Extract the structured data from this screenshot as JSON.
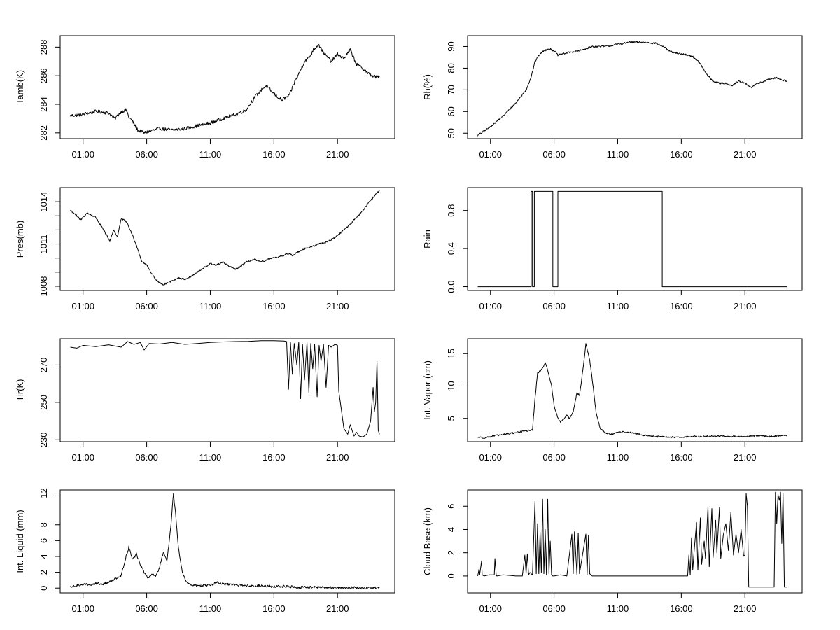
{
  "chart_data": [
    {
      "type": "line",
      "ylabel": "Tamb(K)",
      "x_ticks": [
        "01:00",
        "06:00",
        "11:00",
        "16:00",
        "21:00"
      ],
      "x_range_hours": [
        -0.8,
        25.5
      ],
      "ylim": [
        281.6,
        288.8
      ],
      "y_ticks": [
        {
          "v": 282,
          "label": "282"
        },
        {
          "v": 284,
          "label": "284"
        },
        {
          "v": 286,
          "label": "286"
        },
        {
          "v": 288,
          "label": "288"
        }
      ],
      "step": false,
      "noise": 0.12,
      "x": [
        0.0,
        1.0,
        2.0,
        3.0,
        3.5,
        4.0,
        4.4,
        4.6,
        4.9,
        5.3,
        5.8,
        6.2,
        7.0,
        8.0,
        9.0,
        10.0,
        11.0,
        12.0,
        13.0,
        13.8,
        14.5,
        15.0,
        15.4,
        15.9,
        16.6,
        17.2,
        17.6,
        18.0,
        18.4,
        18.8,
        19.1,
        19.5,
        20.0,
        20.5,
        21.0,
        21.5,
        22.0,
        22.5,
        23.0,
        23.5,
        24.0,
        24.3
      ],
      "y": [
        283.2,
        283.3,
        283.5,
        283.4,
        283.0,
        283.5,
        283.6,
        283.1,
        282.8,
        282.2,
        282.0,
        282.1,
        282.3,
        282.2,
        282.3,
        282.5,
        282.7,
        283.0,
        283.3,
        283.6,
        284.5,
        285.0,
        285.3,
        284.8,
        284.3,
        284.6,
        285.5,
        286.2,
        287.0,
        287.3,
        287.8,
        288.2,
        287.5,
        287.0,
        287.5,
        287.2,
        287.8,
        286.8,
        286.5,
        286.1,
        285.9,
        285.9
      ]
    },
    {
      "type": "line",
      "ylabel": "Rh(%)",
      "x_ticks": [
        "01:00",
        "06:00",
        "11:00",
        "16:00",
        "21:00"
      ],
      "x_range_hours": [
        -0.8,
        25.5
      ],
      "ylim": [
        47.5,
        95
      ],
      "y_ticks": [
        {
          "v": 50,
          "label": "50"
        },
        {
          "v": 60,
          "label": "60"
        },
        {
          "v": 70,
          "label": "70"
        },
        {
          "v": 80,
          "label": "80"
        },
        {
          "v": 90,
          "label": "90"
        }
      ],
      "step": false,
      "noise": 0.4,
      "x": [
        0.0,
        0.5,
        1.0,
        2.0,
        3.0,
        3.8,
        4.2,
        4.5,
        4.8,
        5.2,
        5.6,
        6.0,
        6.3,
        7.0,
        8.0,
        9.0,
        10.0,
        11.0,
        11.5,
        12.0,
        13.0,
        14.0,
        14.6,
        15.0,
        15.5,
        16.0,
        16.6,
        17.0,
        17.5,
        18.0,
        18.5,
        19.0,
        19.5,
        20.0,
        20.5,
        21.0,
        21.5,
        22.0,
        22.5,
        23.0,
        23.5,
        24.0,
        24.3
      ],
      "y": [
        49,
        51,
        53,
        58,
        64,
        70,
        76,
        83,
        86,
        88,
        89,
        88,
        86,
        87,
        88,
        90,
        90,
        91,
        91.5,
        92,
        92,
        91.5,
        90,
        88,
        87,
        86.5,
        86,
        85,
        82,
        77,
        74,
        73,
        73,
        72,
        74,
        73,
        71,
        73,
        74,
        75,
        75.5,
        74.5,
        74
      ]
    },
    {
      "type": "line",
      "ylabel": "Pres(mb)",
      "x_ticks": [
        "01:00",
        "06:00",
        "11:00",
        "16:00",
        "21:00"
      ],
      "x_range_hours": [
        -0.8,
        25.5
      ],
      "ylim": [
        1007.7,
        1015.0
      ],
      "y_ticks": [
        {
          "v": 1008,
          "label": "1008"
        },
        {
          "v": 1009,
          "label": ""
        },
        {
          "v": 1010,
          "label": ""
        },
        {
          "v": 1011,
          "label": "1011"
        },
        {
          "v": 1012,
          "label": ""
        },
        {
          "v": 1013,
          "label": ""
        },
        {
          "v": 1014,
          "label": "1014"
        }
      ],
      "step": false,
      "noise": 0.06,
      "x": [
        0.0,
        0.4,
        0.8,
        1.3,
        2.0,
        2.4,
        2.8,
        3.1,
        3.4,
        3.7,
        4.0,
        4.4,
        4.8,
        5.2,
        5.6,
        6.0,
        6.4,
        6.8,
        7.2,
        7.8,
        8.5,
        9.0,
        9.5,
        10.0,
        10.5,
        11.0,
        11.5,
        12.0,
        12.5,
        13.0,
        13.5,
        14.0,
        14.5,
        15.0,
        15.5,
        16.0,
        16.5,
        17.0,
        17.5,
        18.0,
        18.5,
        19.0,
        19.5,
        20.0,
        20.5,
        21.0,
        21.5,
        22.0,
        22.5,
        23.0,
        23.5,
        24.0,
        24.3
      ],
      "y": [
        1013.4,
        1013.1,
        1012.7,
        1013.2,
        1012.9,
        1012.3,
        1011.7,
        1011.2,
        1012.0,
        1011.5,
        1012.8,
        1012.6,
        1011.8,
        1010.9,
        1009.8,
        1009.5,
        1008.9,
        1008.4,
        1008.1,
        1008.3,
        1008.6,
        1008.5,
        1008.7,
        1009.0,
        1009.3,
        1009.6,
        1009.5,
        1009.7,
        1009.4,
        1009.2,
        1009.5,
        1009.8,
        1009.9,
        1009.7,
        1009.9,
        1010.0,
        1010.1,
        1010.3,
        1010.2,
        1010.5,
        1010.7,
        1010.8,
        1011.0,
        1011.1,
        1011.3,
        1011.6,
        1012.0,
        1012.4,
        1012.9,
        1013.4,
        1014.0,
        1014.5,
        1014.8
      ]
    },
    {
      "type": "line",
      "ylabel": "Rain",
      "x_ticks": [
        "01:00",
        "06:00",
        "11:00",
        "16:00",
        "21:00"
      ],
      "x_range_hours": [
        -0.8,
        25.5
      ],
      "ylim": [
        -0.04,
        1.04
      ],
      "y_ticks": [
        {
          "v": 0,
          "label": "0.0"
        },
        {
          "v": 0.4,
          "label": "0.4"
        },
        {
          "v": 0.8,
          "label": "0.8"
        }
      ],
      "step": true,
      "noise": 0,
      "x": [
        0.0,
        4.2,
        4.2,
        4.3,
        4.3,
        4.45,
        4.45,
        5.9,
        5.9,
        6.3,
        6.3,
        14.5,
        14.5,
        24.3
      ],
      "y": [
        0,
        0,
        1,
        1,
        0,
        0,
        1,
        1,
        0,
        0,
        1,
        1,
        0,
        0
      ]
    },
    {
      "type": "line",
      "ylabel": "Tir(K)",
      "x_ticks": [
        "01:00",
        "06:00",
        "11:00",
        "16:00",
        "21:00"
      ],
      "x_range_hours": [
        -0.8,
        25.5
      ],
      "ylim": [
        229,
        284
      ],
      "y_ticks": [
        {
          "v": 230,
          "label": "230"
        },
        {
          "v": 250,
          "label": "250"
        },
        {
          "v": 270,
          "label": "270"
        }
      ],
      "step": false,
      "noise": 0,
      "x": [
        0.0,
        0.5,
        1.0,
        2.0,
        3.0,
        4.0,
        4.5,
        5.0,
        5.5,
        5.8,
        6.2,
        7.0,
        8.0,
        9.0,
        10.0,
        11.0,
        12.0,
        13.0,
        14.0,
        15.0,
        16.0,
        16.8,
        17.0,
        17.15,
        17.3,
        17.45,
        17.6,
        17.8,
        17.95,
        18.1,
        18.25,
        18.4,
        18.6,
        18.75,
        18.9,
        19.05,
        19.2,
        19.4,
        19.55,
        19.7,
        19.9,
        20.1,
        20.3,
        20.5,
        20.8,
        21.0,
        21.1,
        21.3,
        21.5,
        21.8,
        22.0,
        22.3,
        22.5,
        22.7,
        23.0,
        23.3,
        23.6,
        23.8,
        23.9,
        24.0,
        24.1,
        24.2,
        24.3
      ],
      "y": [
        279.5,
        279.0,
        280.5,
        279.8,
        280.8,
        279.5,
        282.5,
        281.0,
        282.0,
        278.0,
        281.5,
        281.2,
        282.0,
        281.0,
        281.5,
        282.0,
        282.3,
        282.5,
        282.6,
        283.0,
        283.0,
        282.8,
        282.5,
        257.0,
        282.0,
        265.0,
        281.5,
        270.0,
        282.0,
        252.0,
        281.0,
        262.0,
        282.0,
        255.0,
        281.5,
        268.0,
        281.0,
        253.0,
        280.5,
        272.0,
        281.0,
        258.0,
        280.5,
        279.5,
        281.0,
        280.5,
        256.0,
        246.0,
        236.0,
        233.0,
        238.0,
        232.0,
        234.0,
        232.0,
        231.5,
        233.0,
        240.0,
        258.0,
        245.0,
        250.0,
        272.0,
        235.0,
        233.0
      ]
    },
    {
      "type": "line",
      "ylabel": "Int. Vapor (cm)",
      "x_ticks": [
        "01:00",
        "06:00",
        "11:00",
        "16:00",
        "21:00"
      ],
      "x_range_hours": [
        -0.8,
        25.5
      ],
      "ylim": [
        1.4,
        17.3
      ],
      "y_ticks": [
        {
          "v": 5,
          "label": "5"
        },
        {
          "v": 10,
          "label": "10"
        },
        {
          "v": 15,
          "label": "15"
        }
      ],
      "step": false,
      "noise": 0.12,
      "x": [
        0.0,
        0.5,
        1.0,
        2.0,
        3.0,
        3.5,
        4.0,
        4.3,
        4.5,
        4.7,
        5.0,
        5.3,
        5.5,
        5.8,
        6.0,
        6.3,
        6.5,
        6.8,
        7.0,
        7.2,
        7.5,
        7.8,
        8.0,
        8.3,
        8.5,
        8.8,
        9.0,
        9.3,
        9.6,
        10.0,
        10.5,
        11.0,
        11.5,
        12.0,
        12.5,
        13.0,
        14.0,
        15.0,
        16.0,
        17.0,
        18.0,
        19.0,
        20.0,
        21.0,
        22.0,
        23.0,
        24.0,
        24.3
      ],
      "y": [
        2.1,
        2.0,
        2.2,
        2.5,
        2.8,
        3.0,
        3.1,
        3.2,
        8.0,
        12.0,
        12.5,
        13.5,
        12.5,
        10.0,
        7.0,
        5.0,
        4.5,
        5.0,
        5.5,
        5.0,
        6.0,
        9.0,
        8.5,
        13.0,
        16.5,
        14.0,
        11.0,
        6.0,
        3.5,
        2.8,
        2.5,
        2.8,
        2.9,
        2.8,
        2.6,
        2.4,
        2.2,
        2.1,
        2.1,
        2.2,
        2.2,
        2.3,
        2.2,
        2.2,
        2.3,
        2.2,
        2.4,
        2.3
      ]
    },
    {
      "type": "line",
      "ylabel": "Int. Liquid (mm)",
      "x_ticks": [
        "01:00",
        "06:00",
        "11:00",
        "16:00",
        "21:00"
      ],
      "x_range_hours": [
        -0.8,
        25.5
      ],
      "ylim": [
        -0.6,
        12.4
      ],
      "y_ticks": [
        {
          "v": 0,
          "label": "0"
        },
        {
          "v": 2,
          "label": "2"
        },
        {
          "v": 4,
          "label": "4"
        },
        {
          "v": 6,
          "label": "6"
        },
        {
          "v": 8,
          "label": "8"
        },
        {
          "v": 12,
          "label": "12"
        }
      ],
      "step": false,
      "noise": 0.15,
      "x": [
        0.0,
        0.5,
        1.0,
        1.5,
        2.0,
        2.5,
        3.0,
        3.5,
        4.0,
        4.3,
        4.6,
        4.9,
        5.2,
        5.5,
        5.8,
        6.1,
        6.4,
        6.7,
        7.0,
        7.3,
        7.6,
        7.9,
        8.1,
        8.3,
        8.5,
        8.8,
        9.1,
        9.5,
        10.0,
        11.0,
        11.5,
        12.0,
        13.0,
        14.0,
        15.0,
        16.0,
        17.0,
        18.0,
        19.0,
        20.0,
        21.0,
        22.0,
        23.0,
        24.0,
        24.3
      ],
      "y": [
        0.1,
        0.3,
        0.5,
        0.4,
        0.6,
        0.5,
        0.7,
        1.2,
        1.6,
        3.5,
        5.2,
        3.6,
        4.3,
        3.0,
        2.0,
        1.2,
        1.8,
        1.5,
        2.5,
        4.5,
        3.5,
        7.8,
        12.0,
        9.0,
        5.0,
        2.0,
        0.8,
        0.4,
        0.3,
        0.4,
        0.7,
        0.5,
        0.4,
        0.3,
        0.3,
        0.2,
        0.2,
        0.1,
        0.1,
        0.1,
        0.05,
        0.05,
        0.05,
        0.05,
        0.05
      ]
    },
    {
      "type": "line",
      "ylabel": "Cloud Base (km)",
      "x_ticks": [
        "01:00",
        "06:00",
        "11:00",
        "16:00",
        "21:00"
      ],
      "x_range_hours": [
        -0.8,
        25.5
      ],
      "ylim": [
        -1.45,
        7.4
      ],
      "y_ticks": [
        {
          "v": 0,
          "label": "0"
        },
        {
          "v": 2,
          "label": "2"
        },
        {
          "v": 4,
          "label": "4"
        },
        {
          "v": 6,
          "label": "6"
        }
      ],
      "step": false,
      "noise": 0,
      "x": [
        0.0,
        0.1,
        0.15,
        0.3,
        0.35,
        0.5,
        0.9,
        1.3,
        1.35,
        1.45,
        1.5,
        2.0,
        3.0,
        3.5,
        3.7,
        3.8,
        3.9,
        4.0,
        4.1,
        4.2,
        4.3,
        4.5,
        4.6,
        4.7,
        4.8,
        4.9,
        5.0,
        5.1,
        5.2,
        5.3,
        5.4,
        5.5,
        5.6,
        5.7,
        5.8,
        5.9,
        6.0,
        6.5,
        7.0,
        7.4,
        7.5,
        7.6,
        7.8,
        7.9,
        8.0,
        8.5,
        8.6,
        8.7,
        8.8,
        8.9,
        9.0,
        10.0,
        12.0,
        14.0,
        16.0,
        16.5,
        16.6,
        16.7,
        16.8,
        16.9,
        17.0,
        17.2,
        17.3,
        17.5,
        17.6,
        17.8,
        17.9,
        18.1,
        18.2,
        18.4,
        18.5,
        18.7,
        18.8,
        19.0,
        19.1,
        19.3,
        19.5,
        19.7,
        19.9,
        20.1,
        20.3,
        20.5,
        20.7,
        20.9,
        21.0,
        21.1,
        21.2,
        21.3,
        21.4,
        23.3,
        23.4,
        23.5,
        23.6,
        23.7,
        23.8,
        23.9,
        24.0,
        24.1,
        24.2,
        24.3
      ],
      "y": [
        0,
        0.6,
        0.1,
        1.3,
        0.1,
        0,
        0.1,
        0.1,
        1.5,
        0.1,
        0,
        0.1,
        0,
        0,
        1.8,
        0.2,
        1.9,
        0.1,
        0.3,
        0.2,
        0.1,
        6.4,
        0.2,
        4.5,
        0.2,
        3.8,
        0.3,
        6.6,
        0.2,
        4.0,
        0.1,
        6.6,
        0.2,
        3.0,
        0.1,
        0,
        0,
        0.1,
        0,
        3.6,
        0.2,
        3.8,
        0.1,
        3.7,
        0.2,
        3.6,
        0.1,
        3.5,
        0.2,
        0.1,
        0,
        0,
        0,
        0,
        0,
        0,
        1.8,
        0.1,
        3.3,
        0.5,
        2.0,
        4.6,
        0.5,
        5.0,
        1.0,
        3.0,
        1.5,
        6.0,
        0.8,
        5.8,
        1.6,
        4.8,
        2.0,
        5.9,
        1.5,
        3.5,
        4.5,
        2.2,
        5.5,
        1.8,
        3.6,
        2.0,
        4.0,
        1.7,
        1.8,
        7.1,
        6.0,
        -0.95,
        -0.95,
        -0.95,
        7.2,
        4.5,
        7.0,
        6.5,
        7.2,
        2.8,
        7.1,
        -0.95,
        -0.95,
        -0.95
      ]
    }
  ]
}
